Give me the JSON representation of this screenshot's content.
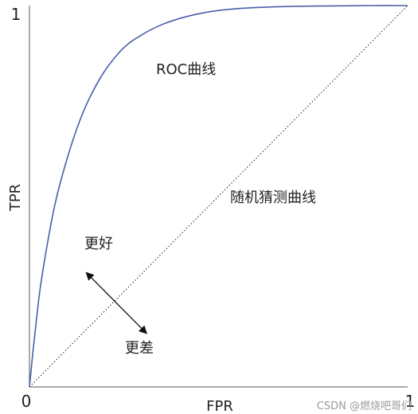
{
  "chart_data": {
    "type": "line",
    "xlabel": "FPR",
    "ylabel": "TPR",
    "xlim": [
      0,
      1
    ],
    "ylim": [
      0,
      1
    ],
    "x_ticks": [
      "0",
      "1"
    ],
    "y_ticks": [
      "0",
      "1"
    ],
    "grid": false,
    "series": [
      {
        "name": "ROC曲线",
        "color": "#4a5fa8",
        "x": [
          0,
          0.01,
          0.02,
          0.03,
          0.05,
          0.07,
          0.1,
          0.13,
          0.16,
          0.2,
          0.25,
          0.3,
          0.35,
          0.4,
          0.45,
          0.5,
          0.55,
          0.6,
          0.7,
          0.8,
          0.9,
          1.0
        ],
        "y": [
          0,
          0.1,
          0.19,
          0.27,
          0.39,
          0.49,
          0.6,
          0.69,
          0.76,
          0.83,
          0.89,
          0.925,
          0.95,
          0.967,
          0.979,
          0.987,
          0.992,
          0.995,
          0.998,
          0.999,
          1.0,
          1.0
        ]
      },
      {
        "name": "随机猜测曲线",
        "color": "#333333",
        "style": "dotted",
        "x": [
          0,
          1
        ],
        "y": [
          0,
          1
        ]
      }
    ],
    "annotations": {
      "better": "更好",
      "worse": "更差",
      "arrow_from": [
        0.15,
        0.3
      ],
      "arrow_to": [
        0.31,
        0.14
      ]
    }
  },
  "watermark": "CSDN @燃烧吧哥们"
}
